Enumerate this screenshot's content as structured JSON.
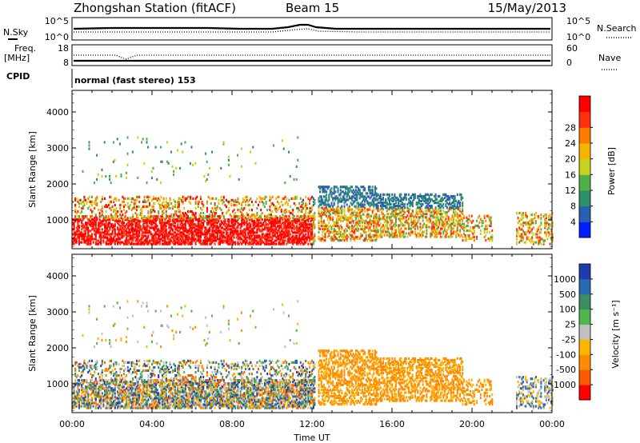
{
  "header": {
    "station": "Zhongshan Station (fitACF)",
    "beam": "Beam 15",
    "date": "15/May/2013"
  },
  "top_panels": {
    "nsky_label": "N.Sky",
    "nsky_top": "10^5",
    "nsky_bottom": "10^0",
    "nsearch_label": "N.Search",
    "nsearch_top": "10^5",
    "nsearch_bottom": "10^0",
    "freq_label": "Freq.",
    "freq_unit": "[MHz]",
    "freq_top": "18",
    "freq_bottom": "8",
    "nave_label": "Nave",
    "nave_top": "60",
    "nave_bottom": "0",
    "cpid_label": "CPID",
    "cpid_text": "normal (fast stereo) 153"
  },
  "chart_data": [
    {
      "type": "heatmap",
      "name": "power",
      "ylabel": "Slant Range [km]",
      "xlabel": "",
      "ylim": [
        200,
        4600
      ],
      "yticks": [
        "1000",
        "2000",
        "3000",
        "4000"
      ],
      "colorbar_label": "Power [dB]",
      "colorbar_ticks": [
        "4",
        "8",
        "12",
        "16",
        "20",
        "24",
        "28"
      ],
      "colorbar_colors": [
        "#0020ff",
        "#2a5fb0",
        "#2f8f6a",
        "#4fb04a",
        "#c8d21e",
        "#f5b400",
        "#ff7a00",
        "#ff3010",
        "#ff0000"
      ]
    },
    {
      "type": "heatmap",
      "name": "velocity",
      "ylabel": "Slant Range [km]",
      "xlabel": "Time UT",
      "ylim": [
        200,
        4600
      ],
      "yticks": [
        "1000",
        "2000",
        "3000",
        "4000"
      ],
      "xticks": [
        "00:00",
        "04:00",
        "08:00",
        "12:00",
        "16:00",
        "20:00",
        "00:00"
      ],
      "colorbar_label": "Velocity [m s⁻¹]",
      "colorbar_ticks": [
        "1000",
        "500",
        "100",
        "25",
        "-25",
        "-100",
        "-500",
        "-1000"
      ],
      "colorbar_colors": [
        "#1e3caa",
        "#2a6ab4",
        "#3c8c64",
        "#50b450",
        "#c0c0c0",
        "#ffb400",
        "#ff8c00",
        "#ff5a00",
        "#ff0000"
      ]
    }
  ]
}
